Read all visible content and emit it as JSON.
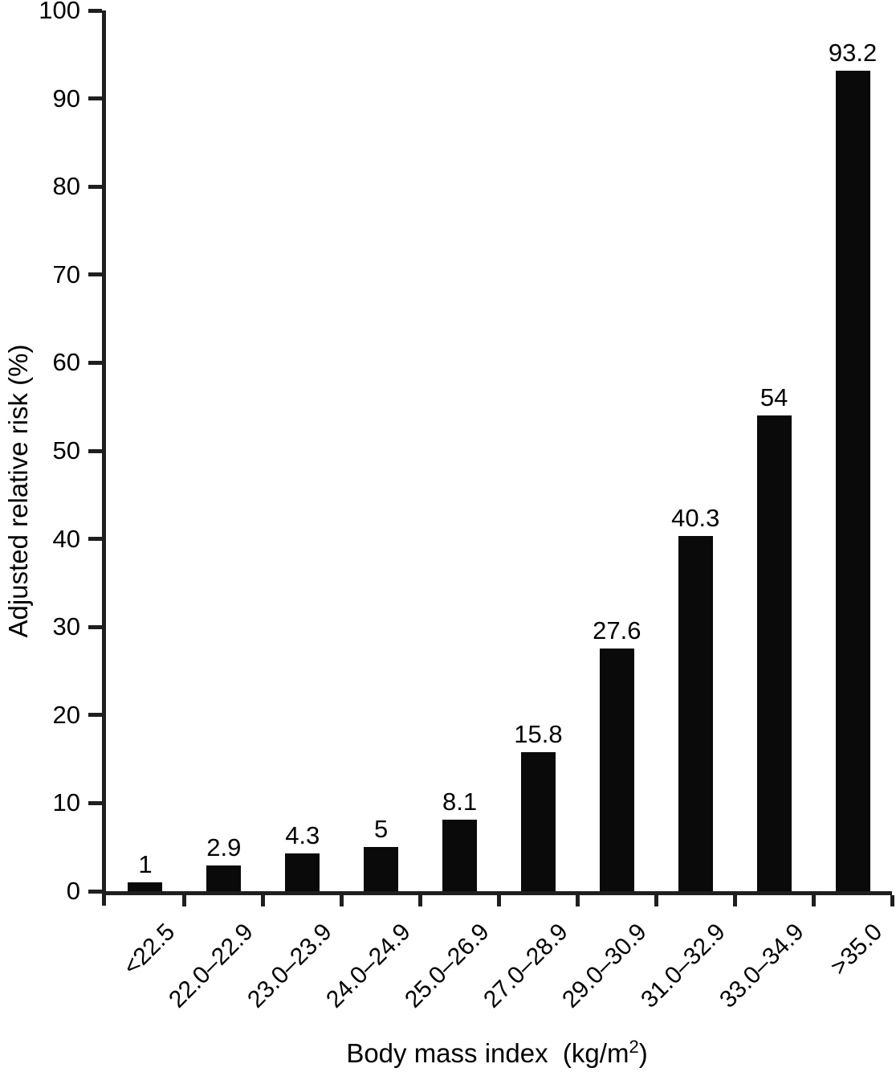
{
  "chart_data": {
    "type": "bar",
    "title": "",
    "categories": [
      "<22.5",
      "22.0–22.9",
      "23.0–23.9",
      "24.0–24.9",
      "25.0–26.9",
      "27.0–28.9",
      "29.0–30.9",
      "31.0–32.9",
      "33.0–34.9",
      ">35.0"
    ],
    "values": [
      1,
      2.9,
      4.3,
      5,
      8.1,
      15.8,
      27.6,
      40.3,
      54,
      93.2
    ],
    "value_labels": [
      "1",
      "2.9",
      "4.3",
      "5",
      "8.1",
      "15.8",
      "27.6",
      "40.3",
      "54",
      "93.2"
    ],
    "yticks": [
      "0",
      "10",
      "20",
      "30",
      "40",
      "50",
      "60",
      "70",
      "80",
      "90",
      "100"
    ],
    "ylim": [
      0,
      100
    ],
    "ylabel": "Adjusted relative risk (%)",
    "xlabel": {
      "text": "Body mass index  (kg/m",
      "sup": "2",
      "end": ")"
    },
    "grid": false,
    "legend": "none",
    "bar_color": "#0a0a0a",
    "axis_color": "#1f1f1f",
    "text_color": "#000000",
    "background": "#ffffff"
  }
}
